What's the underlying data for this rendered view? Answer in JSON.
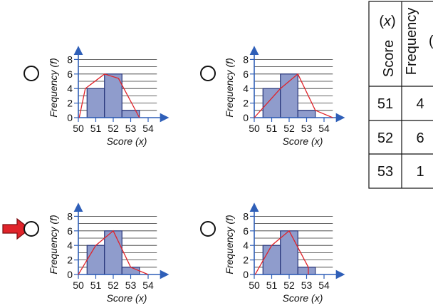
{
  "colors": {
    "bar_fill": "#8f9ccc",
    "bar_stroke": "#27357a",
    "axis": "#2f5fb8",
    "grid": "#333333",
    "polygon": "#e0232a",
    "arrow": "#e0232a"
  },
  "options": [
    {
      "type": "bar+line",
      "xlabel": "Score (x)",
      "ylabel": "Frequency (f)",
      "x_ticks": [
        "50",
        "51",
        "52",
        "53",
        "54"
      ],
      "y_ticks": [
        "0",
        "2",
        "4",
        "6",
        "8"
      ],
      "xlim": [
        50,
        54.5
      ],
      "ylim": [
        0,
        8
      ],
      "bars": [
        {
          "score": 51,
          "frequency": 4
        },
        {
          "score": 52,
          "frequency": 6
        },
        {
          "score": 53,
          "frequency": 1
        }
      ],
      "polygon": [
        [
          50.05,
          0
        ],
        [
          50.4,
          4
        ],
        [
          51.5,
          6
        ],
        [
          52.3,
          5.4
        ],
        [
          53.5,
          0
        ]
      ],
      "selected": false
    },
    {
      "type": "bar+line",
      "xlabel": "Score (x)",
      "ylabel": "Frequency (f)",
      "x_ticks": [
        "50",
        "51",
        "52",
        "53",
        "54"
      ],
      "y_ticks": [
        "0",
        "2",
        "4",
        "6",
        "8"
      ],
      "xlim": [
        50,
        54.5
      ],
      "ylim": [
        0,
        8
      ],
      "bars": [
        {
          "score": 51,
          "frequency": 4
        },
        {
          "score": 52,
          "frequency": 6
        },
        {
          "score": 53,
          "frequency": 1
        }
      ],
      "polygon": [
        [
          50,
          0
        ],
        [
          51.5,
          4
        ],
        [
          52.5,
          6
        ],
        [
          53.5,
          1
        ],
        [
          54.5,
          0
        ]
      ],
      "selected": false
    },
    {
      "type": "bar+line",
      "xlabel": "Score (x)",
      "ylabel": "Frequency (f)",
      "x_ticks": [
        "50",
        "51",
        "52",
        "53",
        "54"
      ],
      "y_ticks": [
        "0",
        "2",
        "4",
        "6",
        "8"
      ],
      "xlim": [
        50,
        54.5
      ],
      "ylim": [
        0,
        8
      ],
      "bars": [
        {
          "score": 51,
          "frequency": 4
        },
        {
          "score": 52,
          "frequency": 6
        },
        {
          "score": 53,
          "frequency": 1
        }
      ],
      "polygon": [
        [
          50,
          0
        ],
        [
          51,
          4
        ],
        [
          52,
          6
        ],
        [
          53,
          1
        ],
        [
          54,
          0
        ]
      ],
      "selected": true
    },
    {
      "type": "bar+line",
      "xlabel": "Score (x)",
      "ylabel": "Frequency (f)",
      "x_ticks": [
        "50",
        "51",
        "52",
        "53",
        "54"
      ],
      "y_ticks": [
        "0",
        "2",
        "4",
        "6",
        "8"
      ],
      "xlim": [
        50,
        54.5
      ],
      "ylim": [
        0,
        8
      ],
      "bars": [
        {
          "score": 51,
          "frequency": 4
        },
        {
          "score": 52,
          "frequency": 6
        },
        {
          "score": 53,
          "frequency": 1
        }
      ],
      "polygon": [
        [
          50.05,
          0
        ],
        [
          51,
          4
        ],
        [
          52,
          6
        ],
        [
          53.1,
          1
        ],
        [
          53.1,
          0
        ]
      ],
      "selected": false
    }
  ],
  "table": {
    "headers": [
      "Score (x)",
      "Frequency (f)"
    ],
    "rows": [
      [
        "51",
        "4"
      ],
      [
        "52",
        "6"
      ],
      [
        "53",
        "1"
      ]
    ]
  },
  "chart_data": [
    {
      "type": "bar",
      "categories": [
        "51",
        "52",
        "53"
      ],
      "values": [
        4,
        6,
        1
      ],
      "xlabel": "Score (x)",
      "ylabel": "Frequency (f)",
      "ylim": [
        0,
        8
      ],
      "grid": true
    },
    {
      "type": "bar",
      "categories": [
        "51",
        "52",
        "53"
      ],
      "values": [
        4,
        6,
        1
      ],
      "xlabel": "Score (x)",
      "ylabel": "Frequency (f)",
      "ylim": [
        0,
        8
      ],
      "grid": true
    },
    {
      "type": "bar",
      "categories": [
        "51",
        "52",
        "53"
      ],
      "values": [
        4,
        6,
        1
      ],
      "xlabel": "Score (x)",
      "ylabel": "Frequency (f)",
      "ylim": [
        0,
        8
      ],
      "grid": true
    },
    {
      "type": "bar",
      "categories": [
        "51",
        "52",
        "53"
      ],
      "values": [
        4,
        6,
        1
      ],
      "xlabel": "Score (x)",
      "ylabel": "Frequency (f)",
      "ylim": [
        0,
        8
      ],
      "grid": true
    },
    {
      "type": "table",
      "columns": [
        "Score (x)",
        "Frequency (f)"
      ],
      "rows": [
        [
          "51",
          "4"
        ],
        [
          "52",
          "6"
        ],
        [
          "53",
          "1"
        ]
      ]
    }
  ]
}
